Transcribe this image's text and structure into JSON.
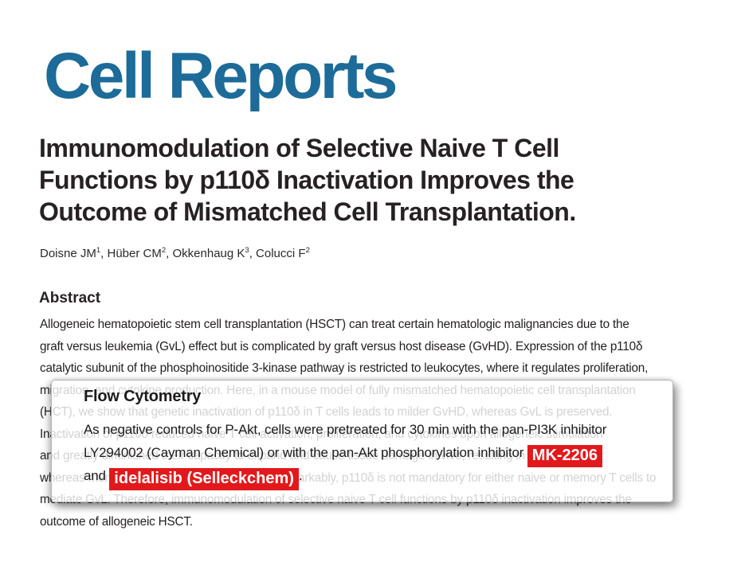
{
  "journal": {
    "logo": "Cell Reports"
  },
  "article": {
    "title_lines": [
      "Immunomodulation of Selective Naive T Cell",
      "Functions by p110δ Inactivation Improves the",
      "Outcome of Mismatched Cell Transplantation."
    ],
    "authors": [
      {
        "name": "Doisne JM",
        "affiliation": "1"
      },
      {
        "name": "Hüber CM",
        "affiliation": "2"
      },
      {
        "name": "Okkenhaug K",
        "affiliation": "3"
      },
      {
        "name": "Colucci F",
        "affiliation": "2"
      }
    ],
    "abstract_heading": "Abstract",
    "abstract_lines": [
      "Allogeneic hematopoietic stem cell transplantation (HSCT) can treat certain hematologic malignancies due to the",
      "graft versus leukemia (GvL) effect but is complicated by graft versus host disease (GvHD). Expression of the p110δ",
      "catalytic subunit of the phosphoinositide 3-kinase pathway is restricted to leukocytes, where it regulates proliferation,",
      "migration, and cytokine production. Here, in a mouse model of fully mismatched hematopoietic cell transplantation",
      "(HCT), we show that genetic inactivation of p110δ in T cells leads to milder GvHD, whereas GvL is preserved.",
      "Inactivation of p110δ reduced naive T cell activation, proliferation, and cytokines upon allogeneic stimulation",
      "and greatly diminished their capacity to expand and cause tissue damage in vivo, resulting in milder GvHD,",
      "whereas memory T cells were less affected. Remarkably, p110δ is not mandatory for either naive or memory T cells to",
      "mediate GvL. Therefore, immunomodulation of selective naive T cell functions by p110δ inactivation improves the",
      "outcome of allogeneic HSCT."
    ]
  },
  "overlay_card": {
    "heading": "Flow Cytometry",
    "line1": "As negative controls for P-Akt, cells were pretreated for 30 min with the pan-PI3K inhibitor",
    "line2_prefix": "LY294002 (Cayman Chemical) or with the pan-Akt phosphorylation inhibitor ",
    "line2_highlight": "MK-2206",
    "line3_prefix": "and ",
    "line3_highlight": "idelalisib (Selleckchem)",
    "line3_suffix": "."
  },
  "colors": {
    "logo_blue": "#1d6b98",
    "highlight_red": "#e2191c",
    "text_dark": "#272123",
    "text_body": "#242021",
    "card_border": "#b5b5b5"
  }
}
